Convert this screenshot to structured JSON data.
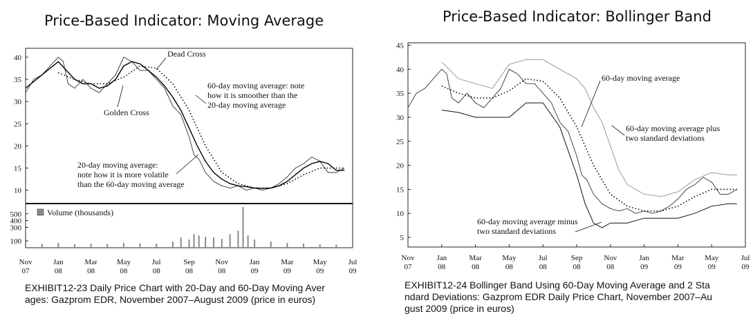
{
  "left": {
    "title": "Price-Based Indicator: Moving Average",
    "caption_line1": "EXHIBIT12-23 Daily Price Chart with 20-Day and 60-Day Moving Aver",
    "caption_line2": "ages: Gazprom EDR, November 2007–August 2009 (price in euros)"
  },
  "right": {
    "title": "Price-Based Indicator: Bollinger Band",
    "caption_line1": "EXHIBIT12-24 Bollinger Band Using 60-Day Moving Average and 2 Sta",
    "caption_line2": "ndard Deviations: Gazprom EDR Daily Price Chart, November 2007–Au",
    "caption_line3": "gust 2009 (price in euros)"
  },
  "chart_data": [
    {
      "type": "line",
      "title": "Price-Based Indicator: Moving Average",
      "x": [
        0,
        2,
        4,
        6,
        8,
        10,
        12,
        14,
        16,
        18,
        19
      ],
      "x_tick_labels": [
        [
          "Nov",
          "07"
        ],
        [
          "Jan",
          "08"
        ],
        [
          "Mar",
          "08"
        ],
        [
          "May",
          "08"
        ],
        [
          "Jul",
          "08"
        ],
        [
          "Sep",
          "08"
        ],
        [
          "Nov",
          "08"
        ],
        [
          "Jan",
          "09"
        ],
        [
          "Mar",
          "09"
        ],
        [
          "May",
          "09"
        ],
        [
          "Jul",
          "09"
        ]
      ],
      "xlim": [
        0,
        20
      ],
      "ylim": [
        7,
        42
      ],
      "y_ticks": [
        10,
        15,
        20,
        25,
        30,
        35,
        40
      ],
      "series": [
        {
          "name": "Price",
          "x": [
            0,
            0.5,
            1,
            1.5,
            2,
            2.3,
            2.6,
            3,
            3.5,
            4,
            4.5,
            5,
            5.5,
            6,
            6.5,
            7,
            7.5,
            8,
            8.5,
            9,
            9.5,
            10,
            10.3,
            10.6,
            11,
            11.5,
            12,
            12.5,
            13,
            13.5,
            14,
            14.5,
            15,
            15.5,
            16,
            16.5,
            17,
            17.5,
            18,
            18.5,
            19,
            19.5
          ],
          "values": [
            32,
            35,
            36,
            38,
            40,
            39,
            34,
            33,
            35,
            33,
            32,
            34,
            36,
            40,
            39,
            37,
            37,
            35,
            33,
            29,
            27,
            22,
            18,
            17,
            14,
            12,
            11,
            10.5,
            11,
            10,
            10.5,
            10,
            10.5,
            11.5,
            13,
            15,
            16,
            17.5,
            16.5,
            14,
            14,
            15
          ]
        },
        {
          "name": "20-day moving average",
          "x": [
            0,
            0.5,
            1,
            1.5,
            2,
            2.5,
            3,
            3.5,
            4,
            4.5,
            5,
            5.5,
            6,
            6.5,
            7,
            7.5,
            8,
            8.5,
            9,
            9.5,
            10,
            10.5,
            11,
            11.5,
            12,
            12.5,
            13,
            13.5,
            14,
            14.5,
            15,
            15.5,
            16,
            16.5,
            17,
            17.5,
            18,
            18.5,
            19,
            19.5
          ],
          "values": [
            33,
            34.5,
            36,
            37.5,
            39,
            37,
            35,
            34,
            34,
            33,
            33.5,
            35,
            38,
            39,
            38.5,
            37,
            35.5,
            33.5,
            31,
            28,
            24,
            20,
            16.5,
            14,
            12.5,
            11.5,
            11,
            10.8,
            10.5,
            10.4,
            10.5,
            11,
            12,
            13.5,
            15,
            16,
            16.5,
            16,
            14.5,
            14.5
          ]
        },
        {
          "name": "60-day moving average",
          "x": [
            2,
            3,
            4,
            5,
            6,
            7,
            8,
            9,
            10,
            11,
            12,
            13,
            14,
            15,
            16,
            17,
            18,
            19,
            19.5
          ],
          "values": [
            36.5,
            35,
            34,
            34,
            35.5,
            38,
            37.5,
            34,
            28,
            20,
            14,
            11.5,
            10.5,
            10.5,
            11.5,
            13.5,
            15,
            15,
            15
          ]
        }
      ]
    },
    {
      "type": "bar",
      "title": "Volume (thousands)",
      "ylim": [
        0,
        650
      ],
      "y_ticks": [
        100,
        300,
        400,
        500
      ],
      "x": [
        0,
        1,
        2,
        3,
        4,
        5,
        6,
        7,
        8,
        9,
        9.5,
        10,
        10.3,
        10.6,
        11,
        11.5,
        12,
        12.5,
        13,
        13.3,
        13.6,
        14,
        15,
        16,
        17,
        18,
        19
      ],
      "values": [
        60,
        55,
        70,
        50,
        60,
        55,
        70,
        65,
        60,
        90,
        150,
        120,
        200,
        180,
        160,
        150,
        130,
        200,
        250,
        600,
        180,
        120,
        90,
        70,
        60,
        50,
        45
      ]
    },
    {
      "type": "line",
      "title": "Price-Based Indicator: Bollinger Band",
      "xlim": [
        0,
        20
      ],
      "ylim": [
        3,
        45.5
      ],
      "y_ticks": [
        5,
        10,
        15,
        20,
        25,
        30,
        35,
        40,
        45
      ],
      "x_tick_labels": [
        [
          "Nov",
          "07"
        ],
        [
          "Jan",
          "08"
        ],
        [
          "Mar",
          "08"
        ],
        [
          "May",
          "08"
        ],
        [
          "Jul",
          "08"
        ],
        [
          "Sep",
          "08"
        ],
        [
          "Nov",
          "08"
        ],
        [
          "Jan",
          "09"
        ],
        [
          "Mar",
          "09"
        ],
        [
          "May",
          "09"
        ],
        [
          "Jul",
          "09"
        ]
      ],
      "series": [
        {
          "name": "Price",
          "x": [
            0,
            0.5,
            1,
            1.5,
            2,
            2.3,
            2.6,
            3,
            3.5,
            4,
            4.5,
            5,
            5.5,
            6,
            6.5,
            7,
            7.5,
            8,
            8.5,
            9,
            9.5,
            10,
            10.3,
            10.6,
            11,
            11.5,
            12,
            12.5,
            13,
            13.5,
            14,
            14.5,
            15,
            15.5,
            16,
            16.5,
            17,
            17.5,
            18,
            18.5,
            19,
            19.5
          ],
          "values": [
            32,
            35,
            36,
            38,
            40,
            39,
            34,
            33,
            35,
            33,
            32,
            34,
            36,
            40,
            39,
            37,
            37,
            35,
            33,
            29,
            27,
            22,
            18,
            17,
            14,
            12,
            11,
            10.5,
            11,
            10,
            10.5,
            10,
            10.5,
            11.5,
            13,
            15,
            16,
            17.5,
            16.5,
            14,
            14,
            15
          ]
        },
        {
          "name": "60-day moving average",
          "x": [
            2,
            3,
            4,
            5,
            6,
            7,
            8,
            9,
            10,
            11,
            12,
            13,
            14,
            15,
            16,
            17,
            18,
            19,
            19.5
          ],
          "values": [
            36.5,
            35,
            34,
            34,
            35.5,
            38,
            37.5,
            34,
            28,
            20,
            14,
            11.5,
            10.5,
            10.5,
            11.5,
            13.5,
            15,
            15,
            15
          ]
        },
        {
          "name": "60-day moving average plus two standard deviations",
          "x": [
            2,
            3,
            4,
            5,
            6,
            7,
            8,
            9,
            10,
            10.5,
            11,
            11.5,
            12,
            12.5,
            13,
            14,
            15,
            16,
            17,
            18,
            19,
            19.5
          ],
          "values": [
            41.5,
            38,
            37,
            36,
            41,
            42,
            42,
            40,
            38,
            36,
            32,
            29,
            24,
            19,
            16,
            14,
            13.5,
            14.5,
            17,
            18.5,
            18,
            18
          ]
        },
        {
          "name": "60-day moving average minus two standard deviations",
          "x": [
            2,
            3,
            4,
            5,
            6,
            7,
            8,
            9,
            10,
            10.5,
            11,
            11.5,
            12,
            12.5,
            13,
            14,
            15,
            16,
            17,
            18,
            19,
            19.5
          ],
          "values": [
            31.5,
            31,
            30,
            30,
            30,
            33,
            33,
            28,
            18,
            12,
            8,
            7,
            8,
            8,
            8,
            9,
            9,
            9,
            10,
            11.5,
            12,
            12
          ]
        }
      ]
    }
  ],
  "annotations": {
    "left": {
      "dead_cross": "Dead Cross",
      "golden_cross": "Golden Cross",
      "ma60_l1": "60-day moving average: note",
      "ma60_l2": "how it is smoother than the",
      "ma60_l3": "20-day moving average",
      "ma20_l1": "20-day moving average:",
      "ma20_l2": "note how it is more volatile",
      "ma20_l3": "than the 60-day moving average",
      "volume_legend": "Volume (thousands)"
    },
    "right": {
      "ma60": "60-day moving average",
      "plus_l1": "60-day moving average plus",
      "plus_l2": "two standard deviations",
      "minus_l1": "60-day moving average minus",
      "minus_l2": "two standard deviations"
    }
  }
}
